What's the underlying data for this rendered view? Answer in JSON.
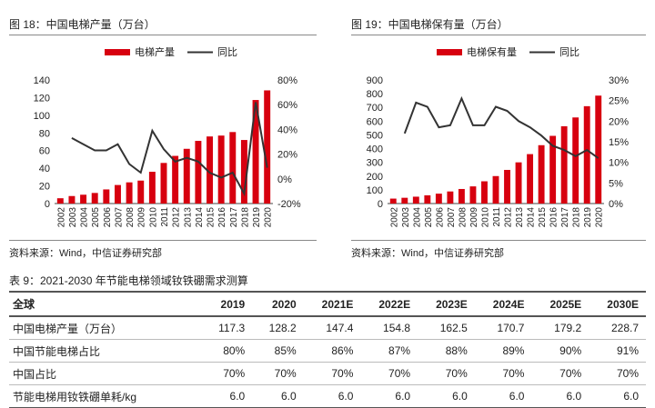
{
  "charts": {
    "fig1_title": "图 18：中国电梯产量（万台）",
    "fig2_title": "图 19：中国电梯保有量（万台）",
    "source1": "资料来源：Wind，中信证券研究部",
    "source2": "资料来源：Wind，中信证券研究部"
  },
  "chart_data": [
    {
      "type": "bar",
      "title": "图 18：中国电梯产量（万台）",
      "categories": [
        "2002",
        "2003",
        "2004",
        "2005",
        "2006",
        "2007",
        "2008",
        "2009",
        "2010",
        "2011",
        "2012",
        "2013",
        "2014",
        "2015",
        "2016",
        "2017",
        "2018",
        "2019",
        "2020"
      ],
      "series": [
        {
          "name": "电梯产量",
          "type": "bar",
          "axis": "left",
          "color": "#d7000f",
          "values": [
            6,
            8.5,
            10,
            12,
            16,
            21,
            24,
            26,
            36,
            46,
            54,
            62,
            71,
            76,
            77,
            81,
            72,
            117.3,
            128.2
          ]
        },
        {
          "name": "同比",
          "type": "line",
          "axis": "right",
          "color": "#333333",
          "values": [
            null,
            33,
            28,
            23,
            23,
            28,
            12,
            5,
            39,
            24,
            14,
            17,
            14,
            5,
            1,
            5,
            -12,
            62,
            9
          ]
        }
      ],
      "left_axis": {
        "min": 0,
        "max": 140,
        "ticks": [
          "0",
          "20",
          "40",
          "60",
          "80",
          "100",
          "120",
          "140"
        ]
      },
      "right_axis": {
        "min": -20,
        "max": 80,
        "ticks": [
          "-20%",
          "0%",
          "20%",
          "40%",
          "60%",
          "80%"
        ]
      },
      "legend": "top-center"
    },
    {
      "type": "bar",
      "title": "图 19：中国电梯保有量（万台）",
      "categories": [
        "2002",
        "2003",
        "2004",
        "2005",
        "2006",
        "2007",
        "2008",
        "2009",
        "2010",
        "2011",
        "2012",
        "2013",
        "2014",
        "2015",
        "2016",
        "2017",
        "2018",
        "2019",
        "2020"
      ],
      "series": [
        {
          "name": "电梯保有量",
          "type": "bar",
          "axis": "left",
          "color": "#d7000f",
          "values": [
            36,
            42,
            50,
            60,
            72,
            88,
            106,
            125,
            162,
            200,
            245,
            300,
            360,
            425,
            493,
            563,
            627,
            709,
            786
          ]
        },
        {
          "name": "同比",
          "type": "line",
          "axis": "right",
          "color": "#333333",
          "values": [
            null,
            17,
            24.5,
            23.5,
            18.5,
            19,
            25.5,
            19,
            19,
            23.5,
            22.5,
            20,
            18.5,
            16.5,
            14,
            13,
            11.5,
            13,
            11
          ]
        }
      ],
      "left_axis": {
        "min": 0,
        "max": 900,
        "ticks": [
          "0",
          "100",
          "200",
          "300",
          "400",
          "500",
          "600",
          "700",
          "800",
          "900"
        ]
      },
      "right_axis": {
        "min": 0,
        "max": 30,
        "ticks": [
          "0%",
          "5%",
          "10%",
          "15%",
          "20%",
          "25%",
          "30%"
        ]
      },
      "legend": "top-center"
    }
  ],
  "table": {
    "title": "表 9：2021-2030 年节能电梯领域钕铁硼需求测算",
    "headers": [
      "全球",
      "2019",
      "2020",
      "2021E",
      "2022E",
      "2023E",
      "2024E",
      "2025E",
      "2030E"
    ],
    "rows": [
      [
        "中国电梯产量（万台）",
        "117.3",
        "128.2",
        "147.4",
        "154.8",
        "162.5",
        "170.7",
        "179.2",
        "228.7"
      ],
      [
        "中国节能电梯占比",
        "80%",
        "85%",
        "86%",
        "87%",
        "88%",
        "89%",
        "90%",
        "91%"
      ],
      [
        "中国占比",
        "70%",
        "70%",
        "70%",
        "70%",
        "70%",
        "70%",
        "70%",
        "70%"
      ],
      [
        "节能电梯用钕铁硼单耗/kg",
        "6.0",
        "6.0",
        "6.0",
        "6.0",
        "6.0",
        "6.0",
        "6.0",
        "6.0"
      ]
    ]
  }
}
